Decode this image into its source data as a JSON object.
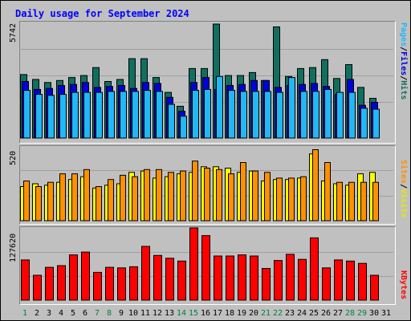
{
  "title": "Daily usage for September 2024",
  "colors": {
    "hits": "#107060",
    "files": "#0000d8",
    "pages": "#20b8f8",
    "visits": "#ffff00",
    "sites": "#ff9000",
    "kbytes": "#ff0000",
    "weekend_day": "#007f40",
    "weekday": "#000000"
  },
  "chart_data": [
    {
      "type": "bar",
      "title": "Daily usage for September 2024",
      "categories": [
        "1",
        "2",
        "3",
        "4",
        "5",
        "6",
        "7",
        "8",
        "9",
        "10",
        "11",
        "12",
        "13",
        "14",
        "15",
        "16",
        "17",
        "18",
        "19",
        "20",
        "21",
        "22",
        "23",
        "24",
        "25",
        "26",
        "27",
        "28",
        "29",
        "30",
        "31"
      ],
      "weekend_days": [
        "1",
        "7",
        "8",
        "14",
        "15",
        "21",
        "22",
        "28",
        "29"
      ],
      "ymax_label": "5742",
      "ylim": [
        0,
        5742
      ],
      "series": [
        {
          "name": "Hits",
          "values": [
            3200,
            2950,
            2800,
            2900,
            3050,
            3150,
            3550,
            2850,
            2950,
            4000,
            4000,
            3050,
            2300,
            1600,
            3500,
            3500,
            5742,
            3150,
            3150,
            3300,
            2900,
            5600,
            3100,
            3500,
            3550,
            3950,
            3000,
            3700,
            2550,
            2000,
            null
          ]
        },
        {
          "name": "Files",
          "values": [
            2850,
            2450,
            2500,
            2650,
            2700,
            2800,
            2550,
            2600,
            2650,
            2500,
            2800,
            2750,
            2050,
            1350,
            2800,
            3050,
            2450,
            2650,
            2700,
            2900,
            2900,
            2550,
            2650,
            2700,
            2750,
            2600,
            2200,
            2950,
            1650,
            1800,
            null
          ]
        },
        {
          "name": "Pages",
          "values": [
            2400,
            2200,
            2150,
            2200,
            2300,
            2300,
            2300,
            2350,
            2350,
            2350,
            2400,
            2350,
            1700,
            1100,
            2400,
            2450,
            3100,
            2400,
            2350,
            2350,
            2350,
            2300,
            3050,
            2350,
            2350,
            2450,
            2300,
            2300,
            1500,
            1450,
            null
          ]
        }
      ],
      "series_label": [
        "Pages",
        "/",
        "Files",
        "/",
        "Hits"
      ]
    },
    {
      "type": "bar",
      "categories": [
        "1",
        "2",
        "3",
        "4",
        "5",
        "6",
        "7",
        "8",
        "9",
        "10",
        "11",
        "12",
        "13",
        "14",
        "15",
        "16",
        "17",
        "18",
        "19",
        "20",
        "21",
        "22",
        "23",
        "24",
        "25",
        "26",
        "27",
        "28",
        "29",
        "30",
        "31"
      ],
      "ymax_label": "520",
      "ylim": [
        0,
        520
      ],
      "series": [
        {
          "name": "Visits",
          "values": [
            240,
            260,
            250,
            270,
            290,
            310,
            230,
            250,
            260,
            340,
            350,
            300,
            310,
            330,
            340,
            380,
            380,
            370,
            340,
            350,
            280,
            290,
            290,
            300,
            470,
            280,
            260,
            250,
            330,
            340,
            null
          ]
        },
        {
          "name": "Sites",
          "values": [
            280,
            240,
            270,
            330,
            330,
            360,
            240,
            290,
            320,
            310,
            360,
            360,
            340,
            350,
            420,
            370,
            360,
            330,
            410,
            350,
            340,
            300,
            300,
            310,
            500,
            410,
            270,
            270,
            270,
            270,
            null
          ]
        }
      ],
      "series_label": [
        "Sites",
        "/",
        "Visits"
      ]
    },
    {
      "type": "bar",
      "categories": [
        "1",
        "2",
        "3",
        "4",
        "5",
        "6",
        "7",
        "8",
        "9",
        "10",
        "11",
        "12",
        "13",
        "14",
        "15",
        "16",
        "17",
        "18",
        "19",
        "20",
        "21",
        "22",
        "23",
        "24",
        "25",
        "26",
        "27",
        "28",
        "29",
        "30",
        "31"
      ],
      "ymax_label": "127620",
      "ylim": [
        0,
        127620
      ],
      "series": [
        {
          "name": "KBytes",
          "values": [
            71000,
            44000,
            58000,
            61000,
            80000,
            85000,
            49000,
            58000,
            57000,
            59000,
            95000,
            79000,
            74000,
            69000,
            127620,
            114000,
            78000,
            78000,
            80000,
            78000,
            56000,
            70000,
            81000,
            72000,
            110000,
            57000,
            71000,
            69000,
            65000,
            44000,
            null
          ]
        }
      ],
      "series_label": [
        "KBytes"
      ]
    }
  ]
}
